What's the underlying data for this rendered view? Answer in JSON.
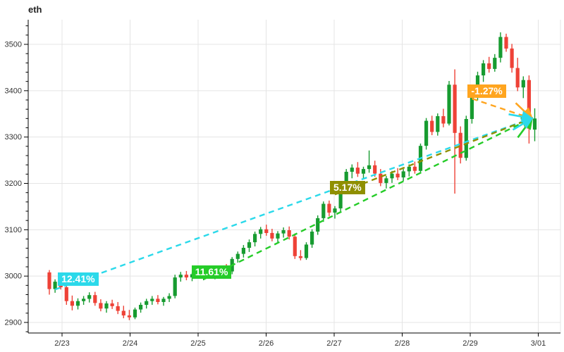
{
  "chart_data": {
    "type": "candlestick",
    "symbol": "eth",
    "x_ticks": [
      "2/23",
      "2/24",
      "2/25",
      "2/26",
      "2/27",
      "2/28",
      "2/29",
      "3/01"
    ],
    "y_ticks": [
      2900,
      3000,
      3100,
      3200,
      3300,
      3400,
      3500
    ],
    "y_minor_step": 20,
    "ylim": [
      2877,
      3553
    ],
    "grid": true,
    "candles_per_day": 12,
    "colors": {
      "up": "#179b30",
      "down": "#ee4237",
      "grid": "#e4e4e4",
      "axis": "#000000",
      "tick_text": "#333333"
    },
    "candles": [
      [
        3008,
        3013,
        2960,
        2972
      ],
      [
        2972,
        2993,
        2964,
        2988
      ],
      [
        2988,
        2996,
        2971,
        2976
      ],
      [
        2976,
        2984,
        2938,
        2946
      ],
      [
        2946,
        2958,
        2926,
        2936
      ],
      [
        2936,
        2952,
        2928,
        2946
      ],
      [
        2946,
        2957,
        2938,
        2951
      ],
      [
        2951,
        2965,
        2943,
        2959
      ],
      [
        2959,
        2966,
        2936,
        2942
      ],
      [
        2942,
        2950,
        2924,
        2930
      ],
      [
        2930,
        2946,
        2921,
        2941
      ],
      [
        2941,
        2949,
        2929,
        2935
      ],
      [
        2935,
        2944,
        2918,
        2925
      ],
      [
        2925,
        2936,
        2909,
        2915
      ],
      [
        2915,
        2927,
        2905,
        2911
      ],
      [
        2911,
        2932,
        2907,
        2928
      ],
      [
        2928,
        2943,
        2921,
        2938
      ],
      [
        2938,
        2951,
        2930,
        2946
      ],
      [
        2946,
        2957,
        2938,
        2951
      ],
      [
        2951,
        2959,
        2939,
        2944
      ],
      [
        2944,
        2955,
        2936,
        2951
      ],
      [
        2951,
        2963,
        2944,
        2957
      ],
      [
        2957,
        3003,
        2952,
        2997
      ],
      [
        2997,
        3009,
        2988,
        3003
      ],
      [
        3003,
        3011,
        2991,
        2997
      ],
      [
        2997,
        3007,
        2989,
        3004
      ],
      [
        3004,
        3012,
        2995,
        2999
      ],
      [
        2999,
        3009,
        2991,
        3006
      ],
      [
        3006,
        3013,
        2996,
        3001
      ],
      [
        3001,
        3011,
        2993,
        3008
      ],
      [
        3008,
        3019,
        3000,
        3015
      ],
      [
        3015,
        3026,
        3005,
        3010
      ],
      [
        3010,
        3041,
        3004,
        3037
      ],
      [
        3037,
        3053,
        3029,
        3048
      ],
      [
        3048,
        3067,
        3040,
        3061
      ],
      [
        3061,
        3079,
        3052,
        3073
      ],
      [
        3073,
        3096,
        3064,
        3091
      ],
      [
        3091,
        3106,
        3081,
        3101
      ],
      [
        3101,
        3111,
        3087,
        3093
      ],
      [
        3093,
        3102,
        3075,
        3081
      ],
      [
        3081,
        3097,
        3073,
        3092
      ],
      [
        3092,
        3105,
        3083,
        3099
      ],
      [
        3099,
        3107,
        3079,
        3085
      ],
      [
        3085,
        3092,
        3037,
        3043
      ],
      [
        3043,
        3056,
        3034,
        3039
      ],
      [
        3039,
        3073,
        3035,
        3068
      ],
      [
        3068,
        3101,
        3061,
        3096
      ],
      [
        3096,
        3131,
        3089,
        3125
      ],
      [
        3125,
        3161,
        3117,
        3156
      ],
      [
        3156,
        3163,
        3129,
        3137
      ],
      [
        3137,
        3151,
        3124,
        3146
      ],
      [
        3146,
        3191,
        3139,
        3186
      ],
      [
        3186,
        3231,
        3179,
        3225
      ],
      [
        3225,
        3241,
        3211,
        3234
      ],
      [
        3234,
        3246,
        3214,
        3221
      ],
      [
        3221,
        3236,
        3209,
        3231
      ],
      [
        3231,
        3271,
        3223,
        3239
      ],
      [
        3239,
        3249,
        3214,
        3221
      ],
      [
        3221,
        3231,
        3194,
        3201
      ],
      [
        3201,
        3216,
        3189,
        3211
      ],
      [
        3211,
        3227,
        3201,
        3221
      ],
      [
        3221,
        3233,
        3207,
        3213
      ],
      [
        3213,
        3231,
        3205,
        3226
      ],
      [
        3226,
        3241,
        3215,
        3236
      ],
      [
        3236,
        3247,
        3221,
        3227
      ],
      [
        3227,
        3286,
        3223,
        3281
      ],
      [
        3281,
        3341,
        3273,
        3335
      ],
      [
        3335,
        3346,
        3304,
        3311
      ],
      [
        3311,
        3351,
        3303,
        3345
      ],
      [
        3345,
        3361,
        3321,
        3329
      ],
      [
        3329,
        3421,
        3325,
        3413
      ],
      [
        3413,
        3446,
        3178,
        3309
      ],
      [
        3309,
        3323,
        3243,
        3255
      ],
      [
        3255,
        3346,
        3249,
        3339
      ],
      [
        3339,
        3396,
        3329,
        3389
      ],
      [
        3389,
        3441,
        3379,
        3433
      ],
      [
        3433,
        3466,
        3419,
        3459
      ],
      [
        3459,
        3473,
        3439,
        3447
      ],
      [
        3447,
        3479,
        3441,
        3471
      ],
      [
        3471,
        3526,
        3461,
        3516
      ],
      [
        3516,
        3523,
        3484,
        3491
      ],
      [
        3491,
        3501,
        3439,
        3449
      ],
      [
        3449,
        3471,
        3399,
        3407
      ],
      [
        3407,
        3431,
        3384,
        3423
      ],
      [
        3423,
        3433,
        3286,
        3318
      ],
      [
        3316,
        3362,
        3291,
        3340
      ]
    ],
    "annotations": [
      {
        "label": "12.41%",
        "color": "#2bd9ea",
        "start_candle": 1,
        "start_price": 2971,
        "end_candle": 85,
        "end_price": 3340,
        "label_offset": [
          4,
          -24
        ]
      },
      {
        "label": "11.61%",
        "color": "#25cc28",
        "start_candle": 27,
        "start_price": 2993,
        "end_candle": 85,
        "end_price": 3340,
        "label_offset": [
          -17,
          -20
        ]
      },
      {
        "label": "5.17%",
        "color": "#8f8f00",
        "start_candle": 50,
        "start_price": 3176,
        "end_candle": 85,
        "end_price": 3340,
        "label_offset": [
          -7,
          -19
        ]
      },
      {
        "label": "-1.27%",
        "color": "#ffa51f",
        "start_candle": 74,
        "start_price": 3383,
        "end_candle": 85,
        "end_price": 3340,
        "label_offset": [
          -6,
          -20
        ]
      }
    ]
  }
}
